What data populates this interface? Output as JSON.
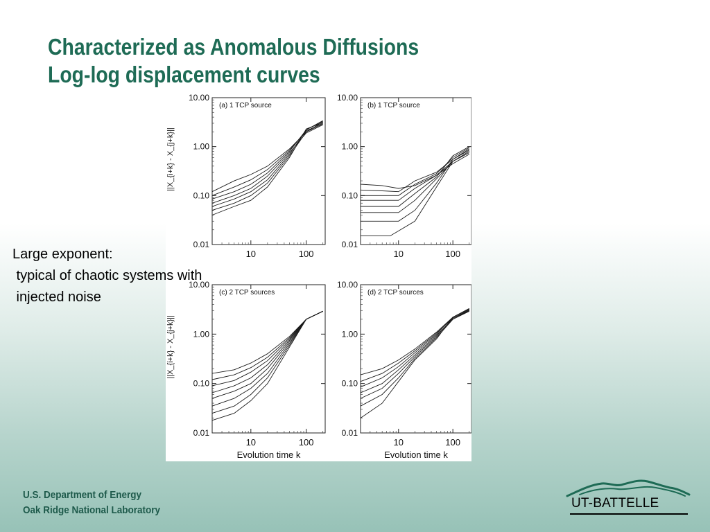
{
  "slide": {
    "title_line1": "Characterized as Anomalous Diffusions",
    "title_line2": "Log-log displacement curves",
    "note": "Large exponent:\n typical of chaotic systems with\n injected noise",
    "footer_line1": "U.S. Department of Energy",
    "footer_line2": "Oak Ridge National Laboratory",
    "logo_text": "UT-BATTELLE",
    "colors": {
      "title": "#1e6b55",
      "footer": "#1e5a4b",
      "logo_mountains": "#1e6b55"
    }
  },
  "chart_data": [
    {
      "type": "line",
      "panel": "(a)",
      "title": "(a) 1 TCP source",
      "ylabel": "||X_{i+k} - X_{j+k}||",
      "xlabel": "",
      "log_x": true,
      "log_y": true,
      "xlim": [
        2,
        220
      ],
      "ylim": [
        0.01,
        10.0
      ],
      "yticks": [
        "0.01",
        "0.10",
        "1.00",
        "10.00"
      ],
      "xticks": [
        "10",
        "100"
      ],
      "series": [
        {
          "x": [
            2,
            5,
            10,
            20,
            50,
            100,
            200
          ],
          "y": [
            0.12,
            0.2,
            0.27,
            0.4,
            0.9,
            2.0,
            3.2
          ]
        },
        {
          "x": [
            2,
            5,
            10,
            20,
            50,
            100,
            200
          ],
          "y": [
            0.1,
            0.15,
            0.21,
            0.34,
            0.85,
            2.1,
            3.0
          ]
        },
        {
          "x": [
            2,
            5,
            10,
            20,
            50,
            100,
            200
          ],
          "y": [
            0.085,
            0.12,
            0.17,
            0.29,
            0.8,
            2.2,
            3.3
          ]
        },
        {
          "x": [
            2,
            5,
            10,
            20,
            50,
            100,
            200
          ],
          "y": [
            0.07,
            0.1,
            0.14,
            0.25,
            0.75,
            1.9,
            2.8
          ]
        },
        {
          "x": [
            2,
            5,
            10,
            20,
            50,
            100,
            200
          ],
          "y": [
            0.06,
            0.085,
            0.12,
            0.21,
            0.7,
            2.2,
            3.4
          ]
        },
        {
          "x": [
            2,
            5,
            10,
            20,
            50,
            100,
            200
          ],
          "y": [
            0.05,
            0.07,
            0.1,
            0.18,
            0.65,
            2.0,
            2.9
          ]
        },
        {
          "x": [
            2,
            5,
            10,
            20,
            50,
            100,
            200
          ],
          "y": [
            0.04,
            0.06,
            0.08,
            0.15,
            0.6,
            2.3,
            3.1
          ]
        }
      ]
    },
    {
      "type": "line",
      "panel": "(b)",
      "title": "(b) 1 TCP source",
      "ylabel": "",
      "xlabel": "",
      "log_x": true,
      "log_y": true,
      "xlim": [
        2,
        220
      ],
      "ylim": [
        0.01,
        10.0
      ],
      "yticks": [
        "0.01",
        "0.10",
        "1.00",
        "10.00"
      ],
      "xticks": [
        "10",
        "100"
      ],
      "series": [
        {
          "x": [
            2,
            5,
            10,
            20,
            50,
            100,
            200
          ],
          "y": [
            0.17,
            0.16,
            0.14,
            0.16,
            0.26,
            0.45,
            0.7
          ]
        },
        {
          "x": [
            2,
            5,
            10,
            20,
            50,
            100,
            200
          ],
          "y": [
            0.13,
            0.125,
            0.12,
            0.2,
            0.3,
            0.55,
            0.85
          ]
        },
        {
          "x": [
            2,
            5,
            10,
            20,
            50,
            100,
            200
          ],
          "y": [
            0.1,
            0.1,
            0.1,
            0.17,
            0.28,
            0.6,
            0.95
          ]
        },
        {
          "x": [
            2,
            5,
            10,
            20,
            50,
            100,
            200
          ],
          "y": [
            0.08,
            0.08,
            0.08,
            0.14,
            0.26,
            0.5,
            0.8
          ]
        },
        {
          "x": [
            2,
            5,
            10,
            20,
            50,
            100,
            200
          ],
          "y": [
            0.06,
            0.06,
            0.06,
            0.11,
            0.24,
            0.65,
            1.0
          ]
        },
        {
          "x": [
            2,
            5,
            10,
            20,
            50,
            100,
            200
          ],
          "y": [
            0.045,
            0.045,
            0.045,
            0.08,
            0.22,
            0.5,
            0.75
          ]
        },
        {
          "x": [
            2,
            5,
            10,
            20,
            50,
            100,
            200
          ],
          "y": [
            0.03,
            0.03,
            0.03,
            0.05,
            0.18,
            0.55,
            0.9
          ]
        },
        {
          "x": [
            2,
            5,
            7,
            20,
            50,
            100,
            200
          ],
          "y": [
            0.015,
            0.015,
            0.015,
            0.03,
            0.15,
            0.5,
            0.8
          ]
        }
      ]
    },
    {
      "type": "line",
      "panel": "(c)",
      "title": "(c) 2 TCP sources",
      "ylabel": "||X_{i+k} - X_{j+k}||",
      "xlabel": "Evolution time k",
      "log_x": true,
      "log_y": true,
      "xlim": [
        2,
        220
      ],
      "ylim": [
        0.01,
        10.0
      ],
      "yticks": [
        "0.01",
        "0.10",
        "1.00",
        "10.00"
      ],
      "xticks": [
        "10",
        "100"
      ],
      "series": [
        {
          "x": [
            2,
            5,
            10,
            20,
            50,
            100,
            200
          ],
          "y": [
            0.16,
            0.19,
            0.26,
            0.4,
            0.9,
            2.0,
            2.9
          ]
        },
        {
          "x": [
            2,
            5,
            10,
            20,
            50,
            100,
            200
          ],
          "y": [
            0.12,
            0.15,
            0.21,
            0.34,
            0.85,
            2.0,
            2.9
          ]
        },
        {
          "x": [
            2,
            5,
            10,
            20,
            50,
            100,
            200
          ],
          "y": [
            0.09,
            0.115,
            0.17,
            0.29,
            0.8,
            2.0,
            2.9
          ]
        },
        {
          "x": [
            2,
            5,
            10,
            20,
            50,
            100,
            200
          ],
          "y": [
            0.065,
            0.09,
            0.13,
            0.24,
            0.75,
            2.0,
            2.9
          ]
        },
        {
          "x": [
            2,
            5,
            10,
            20,
            50,
            100,
            200
          ],
          "y": [
            0.05,
            0.07,
            0.1,
            0.2,
            0.7,
            2.0,
            2.9
          ]
        },
        {
          "x": [
            2,
            5,
            10,
            20,
            50,
            100,
            200
          ],
          "y": [
            0.035,
            0.05,
            0.08,
            0.16,
            0.65,
            2.0,
            2.9
          ]
        },
        {
          "x": [
            2,
            5,
            10,
            20,
            50,
            100,
            200
          ],
          "y": [
            0.025,
            0.035,
            0.06,
            0.13,
            0.6,
            2.0,
            2.9
          ]
        },
        {
          "x": [
            2,
            5,
            10,
            20,
            50,
            100,
            200
          ],
          "y": [
            0.018,
            0.025,
            0.045,
            0.1,
            0.55,
            2.0,
            2.9
          ]
        }
      ]
    },
    {
      "type": "line",
      "panel": "(d)",
      "title": "(d) 2 TCP sources",
      "ylabel": "",
      "xlabel": "Evolution time k",
      "log_x": true,
      "log_y": true,
      "xlim": [
        2,
        220
      ],
      "ylim": [
        0.01,
        10.0
      ],
      "yticks": [
        "0.01",
        "0.10",
        "1.00",
        "10.00"
      ],
      "xticks": [
        "10",
        "100"
      ],
      "series": [
        {
          "x": [
            2,
            5,
            10,
            20,
            50,
            100,
            200
          ],
          "y": [
            0.15,
            0.2,
            0.3,
            0.5,
            1.1,
            2.2,
            3.2
          ]
        },
        {
          "x": [
            2,
            5,
            10,
            20,
            50,
            100,
            200
          ],
          "y": [
            0.11,
            0.16,
            0.26,
            0.46,
            1.05,
            2.1,
            3.0
          ]
        },
        {
          "x": [
            2,
            5,
            10,
            20,
            50,
            100,
            200
          ],
          "y": [
            0.085,
            0.13,
            0.22,
            0.42,
            1.0,
            2.2,
            3.3
          ]
        },
        {
          "x": [
            2,
            5,
            10,
            20,
            50,
            100,
            200
          ],
          "y": [
            0.065,
            0.1,
            0.19,
            0.38,
            0.95,
            2.0,
            2.9
          ]
        },
        {
          "x": [
            2,
            5,
            10,
            20,
            50,
            100,
            200
          ],
          "y": [
            0.05,
            0.08,
            0.16,
            0.35,
            0.9,
            2.1,
            3.1
          ]
        },
        {
          "x": [
            2,
            5,
            10,
            20,
            50,
            100,
            200
          ],
          "y": [
            0.035,
            0.06,
            0.13,
            0.32,
            0.85,
            2.0,
            3.0
          ]
        },
        {
          "x": [
            2,
            5,
            10,
            20,
            50,
            100,
            200
          ],
          "y": [
            0.02,
            0.04,
            0.11,
            0.3,
            0.8,
            2.2,
            3.2
          ]
        }
      ]
    }
  ]
}
